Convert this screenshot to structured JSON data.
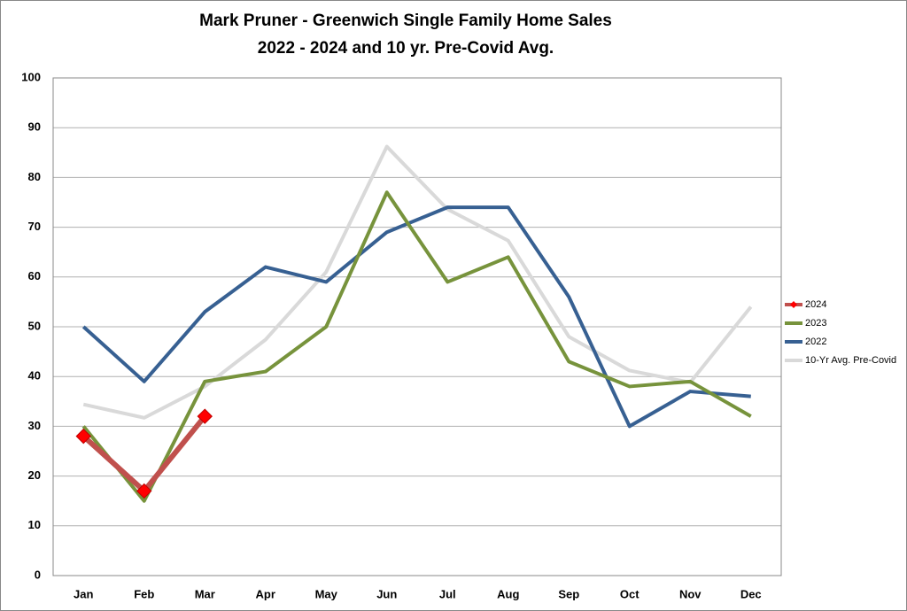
{
  "chart_data": {
    "type": "line",
    "title": [
      "Mark Pruner - Greenwich Single Family Home Sales",
      "2022 - 2024 and 10 yr. Pre-Covid Avg."
    ],
    "categories": [
      "Jan",
      "Feb",
      "Mar",
      "Apr",
      "May",
      "Jun",
      "Jul",
      "Aug",
      "Sep",
      "Oct",
      "Nov",
      "Dec"
    ],
    "series": [
      {
        "name": "2024",
        "color": "#c0504d",
        "marker": "diamond",
        "values": [
          28,
          17,
          32,
          null,
          null,
          null,
          null,
          null,
          null,
          null,
          null,
          null
        ]
      },
      {
        "name": "2023",
        "color": "#77933c",
        "values": [
          30,
          15,
          39,
          41,
          50,
          77,
          59,
          64,
          43,
          38,
          39,
          32
        ]
      },
      {
        "name": "2022",
        "color": "#376092",
        "values": [
          50,
          39,
          53,
          62,
          59,
          69,
          74,
          74,
          56,
          30,
          37,
          36
        ]
      },
      {
        "name": "10-Yr Avg. Pre-Covid",
        "color": "#d9d9d9",
        "values": [
          34.4,
          31.7,
          38,
          47.4,
          61,
          86.2,
          73.6,
          67.3,
          48,
          41.2,
          38.8,
          54
        ]
      }
    ],
    "ylim": [
      0,
      100
    ],
    "yticks": [
      0,
      10,
      20,
      30,
      40,
      50,
      60,
      70,
      80,
      90,
      100
    ],
    "grid": true,
    "legend": "right"
  }
}
